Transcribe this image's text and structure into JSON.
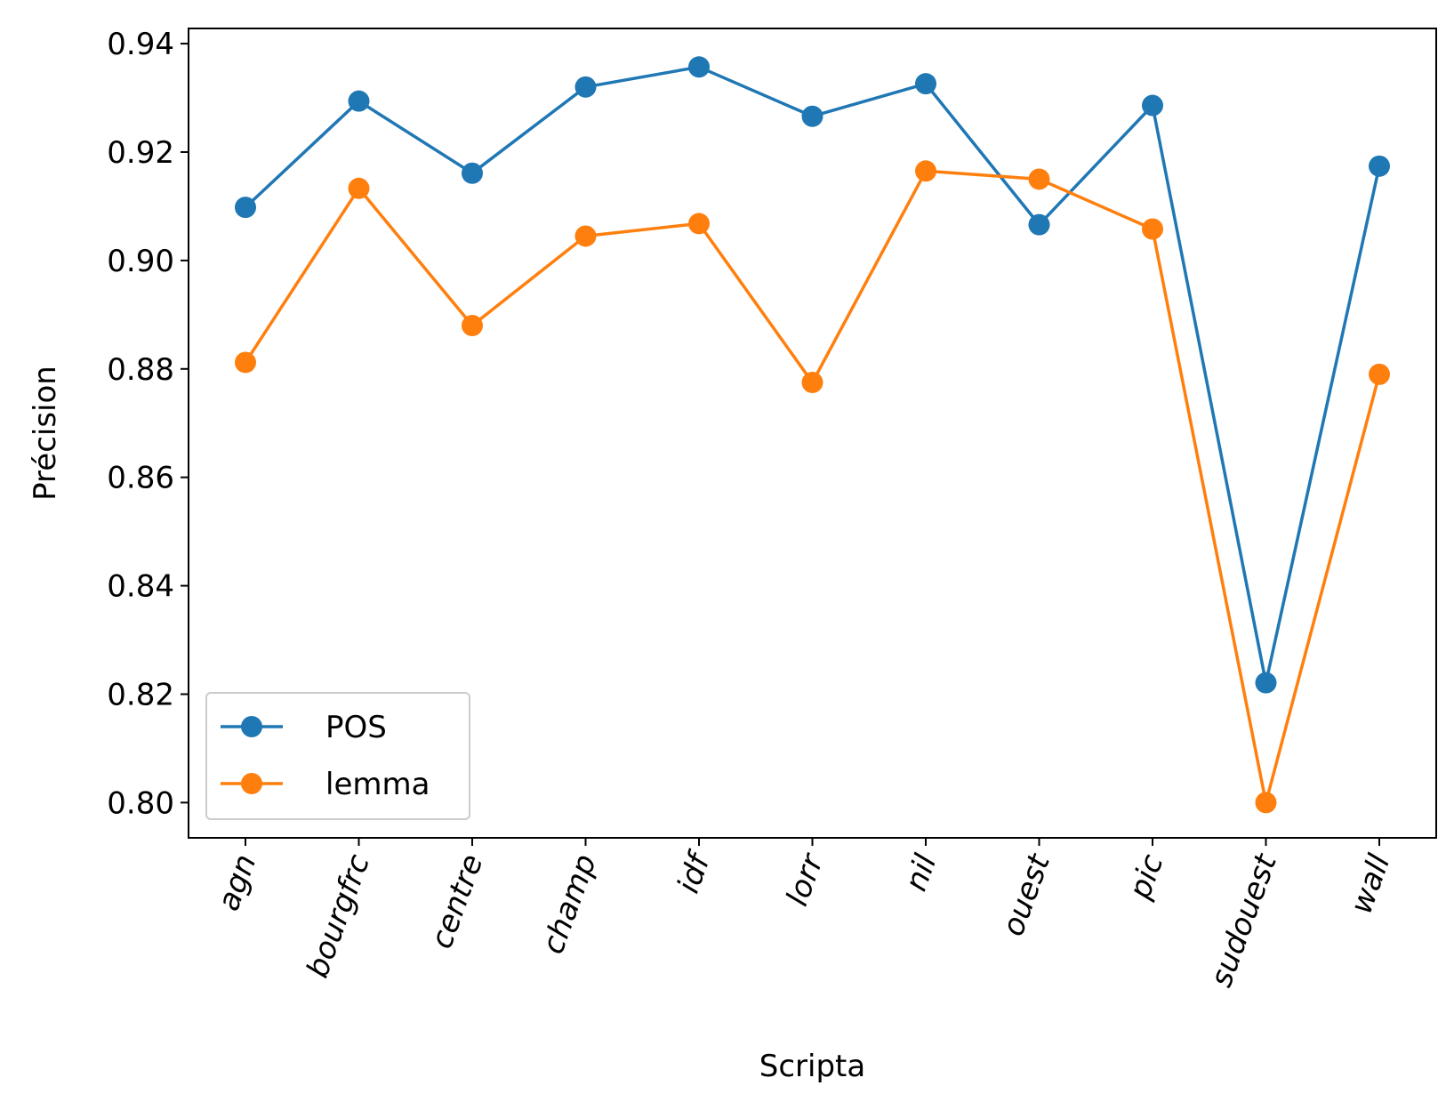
{
  "chart_data": {
    "type": "line",
    "title": "",
    "xlabel": "Scripta",
    "ylabel": "Précision",
    "categories": [
      "agn",
      "bourgfrc",
      "centre",
      "champ",
      "idf",
      "lorr",
      "nil",
      "ouest",
      "pic",
      "sudouest",
      "wall"
    ],
    "ylim": [
      0.7935,
      0.9428
    ],
    "yticks": [
      "0.80",
      "0.82",
      "0.84",
      "0.86",
      "0.88",
      "0.90",
      "0.92",
      "0.94"
    ],
    "grid": false,
    "legend_position": "lower-left",
    "series": [
      {
        "name": "POS",
        "color": "#1f77b4",
        "marker": "circle",
        "values": [
          0.9098,
          0.9294,
          0.9161,
          0.932,
          0.9357,
          0.9266,
          0.9326,
          0.9066,
          0.9286,
          0.8221,
          0.9174
        ]
      },
      {
        "name": "lemma",
        "color": "#ff7f0e",
        "marker": "circle",
        "values": [
          0.8812,
          0.9133,
          0.888,
          0.9045,
          0.9068,
          0.8775,
          0.9165,
          0.915,
          0.9058,
          0.8,
          0.879
        ]
      }
    ]
  }
}
